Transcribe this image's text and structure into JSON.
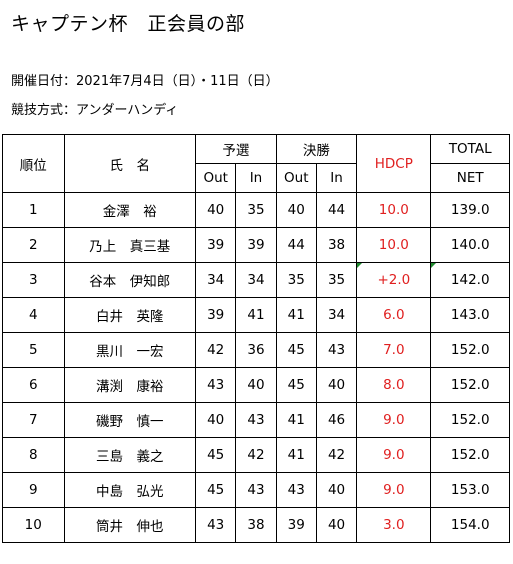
{
  "title": "キャプテン杯　正会員の部",
  "date_line": "開催日付：2021年7月4日（日）・11日（日）",
  "format_line": "競技方式：アンダーハンディ",
  "headers": {
    "rank": "順位",
    "name": "氏　名",
    "qualify": "予選",
    "final": "決勝",
    "hdcp": "HDCP",
    "total": "TOTAL",
    "out": "Out",
    "in": "In",
    "net": "NET"
  },
  "rows": [
    {
      "rank": "1",
      "name": "金澤　裕",
      "q_out": "40",
      "q_in": "35",
      "f_out": "40",
      "f_in": "44",
      "hdcp": "10.0",
      "net": "139.0"
    },
    {
      "rank": "2",
      "name": "乃上　真三基",
      "q_out": "39",
      "q_in": "39",
      "f_out": "44",
      "f_in": "38",
      "hdcp": "10.0",
      "net": "140.0"
    },
    {
      "rank": "3",
      "name": "谷本　伊知郎",
      "q_out": "34",
      "q_in": "34",
      "f_out": "35",
      "f_in": "35",
      "hdcp": "+2.0",
      "net": "142.0"
    },
    {
      "rank": "4",
      "name": "白井　英隆",
      "q_out": "39",
      "q_in": "41",
      "f_out": "41",
      "f_in": "34",
      "hdcp": "6.0",
      "net": "143.0"
    },
    {
      "rank": "5",
      "name": "黒川　一宏",
      "q_out": "42",
      "q_in": "36",
      "f_out": "45",
      "f_in": "43",
      "hdcp": "7.0",
      "net": "152.0"
    },
    {
      "rank": "6",
      "name": "溝渕　康裕",
      "q_out": "43",
      "q_in": "40",
      "f_out": "45",
      "f_in": "40",
      "hdcp": "8.0",
      "net": "152.0"
    },
    {
      "rank": "7",
      "name": "磯野　慎一",
      "q_out": "40",
      "q_in": "43",
      "f_out": "41",
      "f_in": "46",
      "hdcp": "9.0",
      "net": "152.0"
    },
    {
      "rank": "8",
      "name": "三島　義之",
      "q_out": "45",
      "q_in": "42",
      "f_out": "41",
      "f_in": "42",
      "hdcp": "9.0",
      "net": "152.0"
    },
    {
      "rank": "9",
      "name": "中島　弘光",
      "q_out": "45",
      "q_in": "43",
      "f_out": "43",
      "f_in": "40",
      "hdcp": "9.0",
      "net": "153.0"
    },
    {
      "rank": "10",
      "name": "筒井　伸也",
      "q_out": "43",
      "q_in": "38",
      "f_out": "39",
      "f_in": "40",
      "hdcp": "3.0",
      "net": "154.0"
    }
  ],
  "colors": {
    "hdcp": "#e02020",
    "comment_marker": "#1f8a2e"
  }
}
